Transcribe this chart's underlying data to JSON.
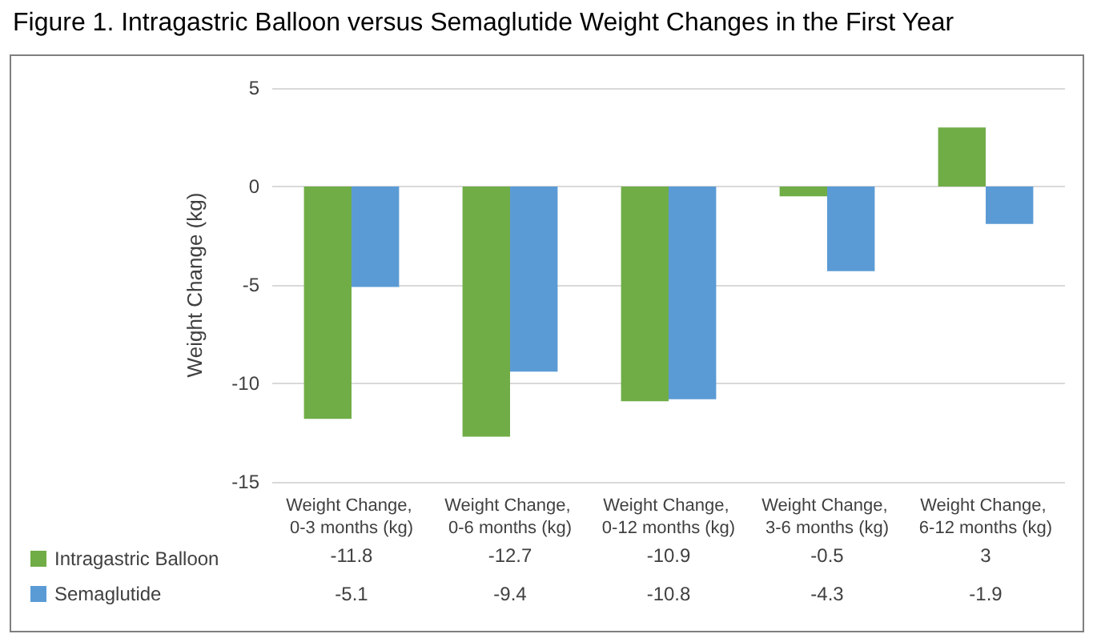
{
  "chart_data": {
    "type": "bar",
    "title": "Figure 1. Intragastric Balloon versus Semaglutide Weight Changes in the First Year",
    "ylabel": "Weight Change (kg)",
    "categories": [
      "Weight Change, 0-3 months (kg)",
      "Weight Change, 0-6 months (kg)",
      "Weight Change, 0-12 months (kg)",
      "Weight Change, 3-6 months (kg)",
      "Weight Change, 6-12 months (kg)"
    ],
    "series": [
      {
        "name": "Intragastric Balloon",
        "color": "#70ad47",
        "values": [
          -11.8,
          -12.7,
          -10.9,
          -0.5,
          3
        ]
      },
      {
        "name": "Semaglutide",
        "color": "#5b9bd5",
        "values": [
          -5.1,
          -9.4,
          -10.8,
          -4.3,
          -1.9
        ]
      }
    ],
    "ylim": [
      -15,
      5
    ],
    "yticks": [
      -15,
      -10,
      -5,
      0,
      5
    ],
    "grid": "y",
    "legend": "bottom left",
    "data_labels": true
  }
}
